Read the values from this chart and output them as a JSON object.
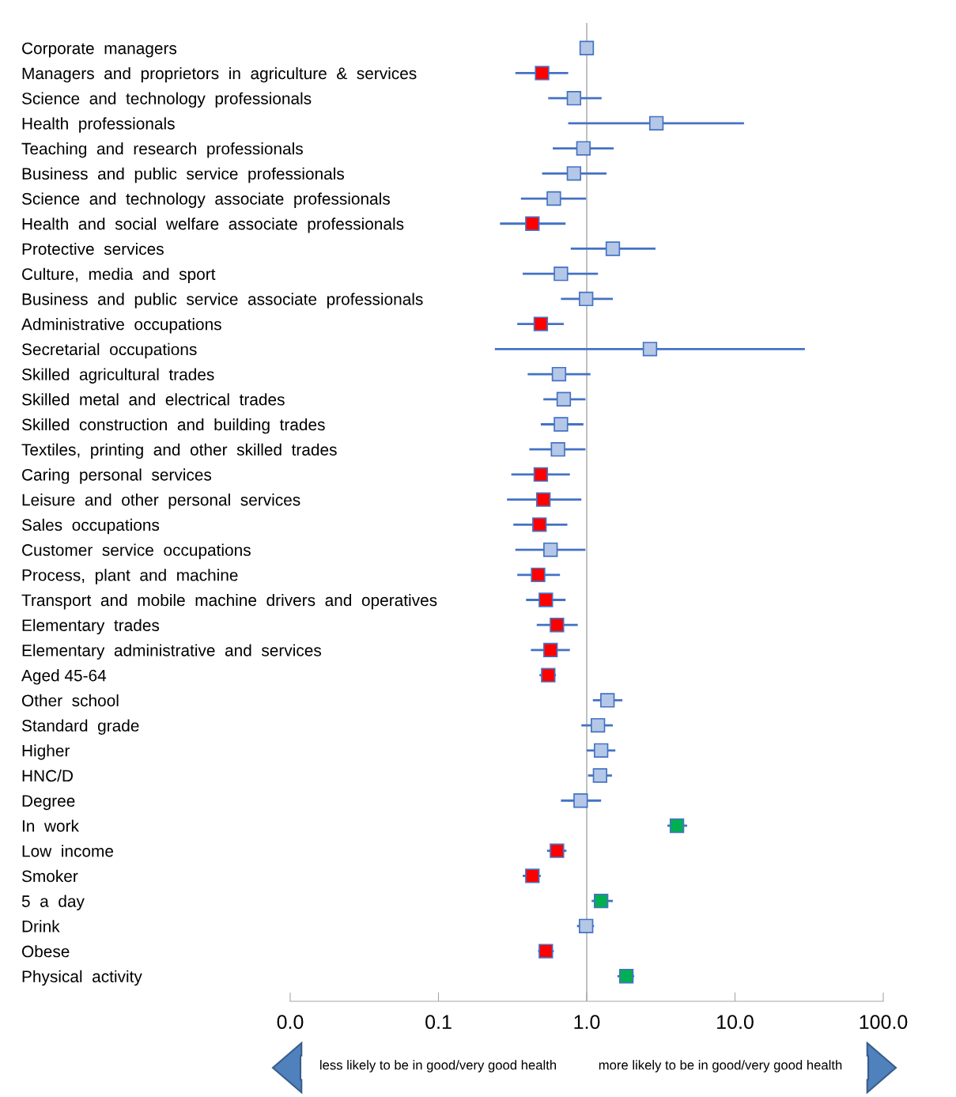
{
  "chart_data": {
    "type": "scatter",
    "orientation": "horizontal",
    "log": "x",
    "marker": "square",
    "grid": false,
    "legend": false,
    "categories": [
      "Corporate  managers",
      "Managers  and  proprietors  in  agriculture  &  services",
      "Science  and  technology  professionals",
      "Health  professionals",
      "Teaching  and  research  professionals",
      "Business  and  public  service  professionals",
      "Science  and  technology  associate  professionals",
      "Health  and  social  welfare  associate  professionals",
      "Protective  services",
      "Culture,  media  and  sport",
      "Business  and  public  service  associate  professionals",
      "Administrative  occupations",
      "Secretarial  occupations",
      "Skilled  agricultural  trades",
      "Skilled  metal  and  electrical  trades",
      "Skilled  construction  and  building  trades",
      "Textiles,  printing  and  other  skilled  trades",
      "Caring  personal  services",
      "Leisure  and  other  personal  services",
      "Sales  occupations",
      "Customer  service  occupations",
      "Process,  plant  and  machine",
      "Transport  and  mobile  machine  drivers  and  operatives",
      "Elementary  trades",
      "Elementary  administrative  and  services",
      "Aged 45-64",
      "Other  school",
      "Standard  grade",
      "Higher",
      "HNC/D",
      "Degree",
      "In  work",
      "Low  income",
      "Smoker",
      "5  a  day",
      "Drink",
      "Obese",
      "Physical  activity"
    ],
    "series": [
      {
        "color": "#4472c4",
        "values": [
          1.0,
          0.5,
          0.82,
          2.95,
          0.95,
          0.82,
          0.6,
          0.43,
          1.5,
          0.67,
          0.99,
          0.49,
          2.67,
          0.65,
          0.7,
          0.67,
          0.64,
          0.49,
          0.51,
          0.48,
          0.57,
          0.47,
          0.53,
          0.63,
          0.57,
          0.55,
          1.38,
          1.19,
          1.25,
          1.23,
          0.91,
          4.06,
          0.63,
          0.43,
          1.25,
          0.99,
          0.53,
          1.85
        ],
        "errors": [
          null,
          [
            0.33,
            0.75
          ],
          [
            0.55,
            1.26
          ],
          [
            0.75,
            11.5
          ],
          [
            0.59,
            1.52
          ],
          [
            0.5,
            1.36
          ],
          [
            0.36,
            0.99
          ],
          [
            0.26,
            0.72
          ],
          [
            0.78,
            2.91
          ],
          [
            0.37,
            1.19
          ],
          [
            0.67,
            1.5
          ],
          [
            0.34,
            0.7
          ],
          [
            0.24,
            29.6
          ],
          [
            0.4,
            1.06
          ],
          [
            0.51,
            0.98
          ],
          [
            0.49,
            0.95
          ],
          [
            0.41,
            0.98
          ],
          [
            0.31,
            0.77
          ],
          [
            0.29,
            0.92
          ],
          [
            0.32,
            0.74
          ],
          [
            0.33,
            0.98
          ],
          [
            0.34,
            0.66
          ],
          [
            0.39,
            0.72
          ],
          [
            0.46,
            0.87
          ],
          [
            0.42,
            0.77
          ],
          [
            0.48,
            0.62
          ],
          [
            1.1,
            1.74
          ],
          [
            0.92,
            1.5
          ],
          [
            1.0,
            1.56
          ],
          [
            1.02,
            1.48
          ],
          [
            0.67,
            1.25
          ],
          [
            3.5,
            4.76
          ],
          [
            0.54,
            0.73
          ],
          [
            0.37,
            0.49
          ],
          [
            1.08,
            1.5
          ],
          [
            0.86,
            1.12
          ],
          [
            0.47,
            0.6
          ],
          [
            1.61,
            2.09
          ]
        ],
        "colors": [
          "#b4c7e7",
          "#ff0000",
          "#b4c7e7",
          "#b4c7e7",
          "#b4c7e7",
          "#b4c7e7",
          "#b4c7e7",
          "#ff0000",
          "#b4c7e7",
          "#b4c7e7",
          "#b4c7e7",
          "#ff0000",
          "#b4c7e7",
          "#b4c7e7",
          "#b4c7e7",
          "#b4c7e7",
          "#b4c7e7",
          "#ff0000",
          "#ff0000",
          "#ff0000",
          "#b4c7e7",
          "#ff0000",
          "#ff0000",
          "#ff0000",
          "#ff0000",
          "#ff0000",
          "#b4c7e7",
          "#b4c7e7",
          "#b4c7e7",
          "#b4c7e7",
          "#b4c7e7",
          "#00b050",
          "#ff0000",
          "#ff0000",
          "#00b050",
          "#b4c7e7",
          "#ff0000",
          "#00b050"
        ]
      }
    ],
    "xlim": [
      0.01,
      100
    ],
    "xticks": [
      {
        "value": 0.01,
        "label": "0.0"
      },
      {
        "value": 0.1,
        "label": "0.1"
      },
      {
        "value": 1,
        "label": "1.0"
      },
      {
        "value": 10,
        "label": "10.0"
      },
      {
        "value": 100,
        "label": "100.0"
      }
    ],
    "ref_lines": [
      {
        "axis": "x",
        "value": 1,
        "color": "#a6a6a6"
      }
    ],
    "annotations": [
      "less likely to be in good/very good health",
      "more likely to be in good/very good health"
    ]
  }
}
